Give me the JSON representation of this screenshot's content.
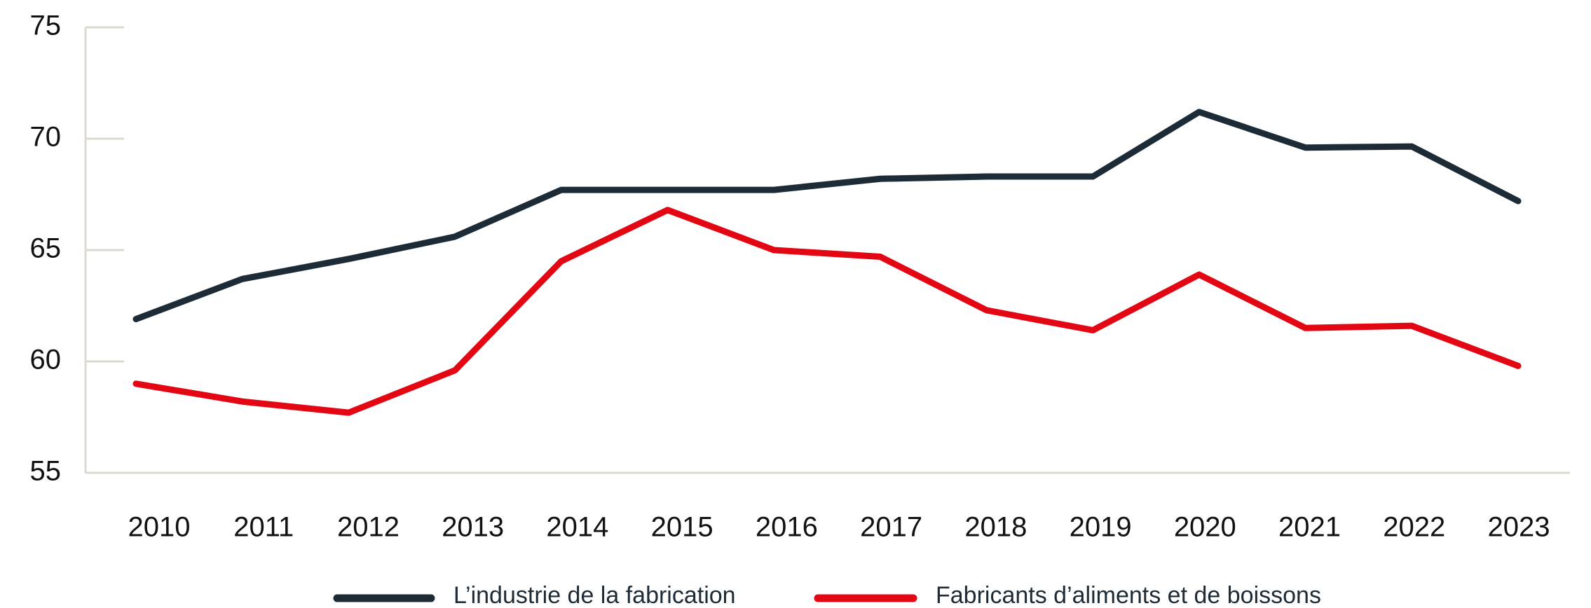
{
  "chart_data": {
    "type": "line",
    "x": [
      "2010",
      "2011",
      "2012",
      "2013",
      "2014",
      "2015",
      "2016",
      "2017",
      "2018",
      "2019",
      "2020",
      "2021",
      "2022",
      "2023"
    ],
    "series": [
      {
        "name": "L’industrie de la fabrication",
        "color": "#1d2b36",
        "values": [
          61.9,
          63.7,
          64.6,
          65.6,
          67.7,
          67.7,
          67.7,
          68.2,
          68.3,
          68.3,
          71.2,
          69.6,
          69.65,
          67.2
        ]
      },
      {
        "name": "Fabricants d’aliments et de boissons",
        "color": "#e30613",
        "values": [
          59.0,
          58.2,
          57.7,
          59.6,
          64.5,
          66.8,
          65.0,
          64.7,
          62.3,
          61.4,
          63.9,
          61.5,
          61.6,
          59.8
        ]
      }
    ],
    "ylim": [
      55,
      75
    ],
    "yticks": [
      55,
      60,
      65,
      70,
      75
    ],
    "grid": false,
    "legend": "bottom"
  }
}
